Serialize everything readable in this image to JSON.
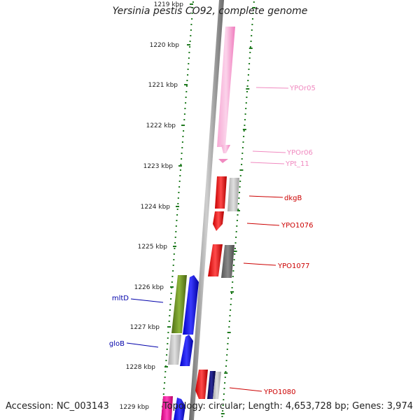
{
  "header": {
    "title": "Yersinia pestis CO92, complete genome"
  },
  "footer": {
    "accession": "Accession: NC_003143",
    "topology": "Topology: circular; Length: 4,653,728 bp; Genes: 3,974"
  },
  "scale": {
    "ticks": [
      "1219 kbp",
      "1220 kbp",
      "1221 kbp",
      "1222 kbp",
      "1223 kbp",
      "1224 kbp",
      "1225 kbp",
      "1226 kbp",
      "1227 kbp",
      "1228 kbp",
      "1229 kbp"
    ]
  },
  "colors": {
    "backbone": "#8a8a8a",
    "tick": "#1f7a1f",
    "rRNA": "#f58fc8",
    "protein_red": "#ee1111",
    "protein_blue": "#1a1aee",
    "olive": "#6b8e23",
    "gray_light": "#bdbdbd",
    "gray_dark": "#6e6e6e",
    "navy": "#0b0b6b",
    "magenta": "#ee1199"
  },
  "gene_labels": [
    {
      "name": "YPOr05",
      "color": "#f08ac0"
    },
    {
      "name": "YPOr06",
      "color": "#f08ac0"
    },
    {
      "name": "YPt_11",
      "color": "#f08ac0"
    },
    {
      "name": "dkgB",
      "color": "#cc0000"
    },
    {
      "name": "YPO1076",
      "color": "#cc0000"
    },
    {
      "name": "YPO1077",
      "color": "#cc0000"
    },
    {
      "name": "mltD",
      "color": "#0000aa"
    },
    {
      "name": "gloB",
      "color": "#0000aa"
    },
    {
      "name": "YPO1080",
      "color": "#cc0000"
    }
  ]
}
